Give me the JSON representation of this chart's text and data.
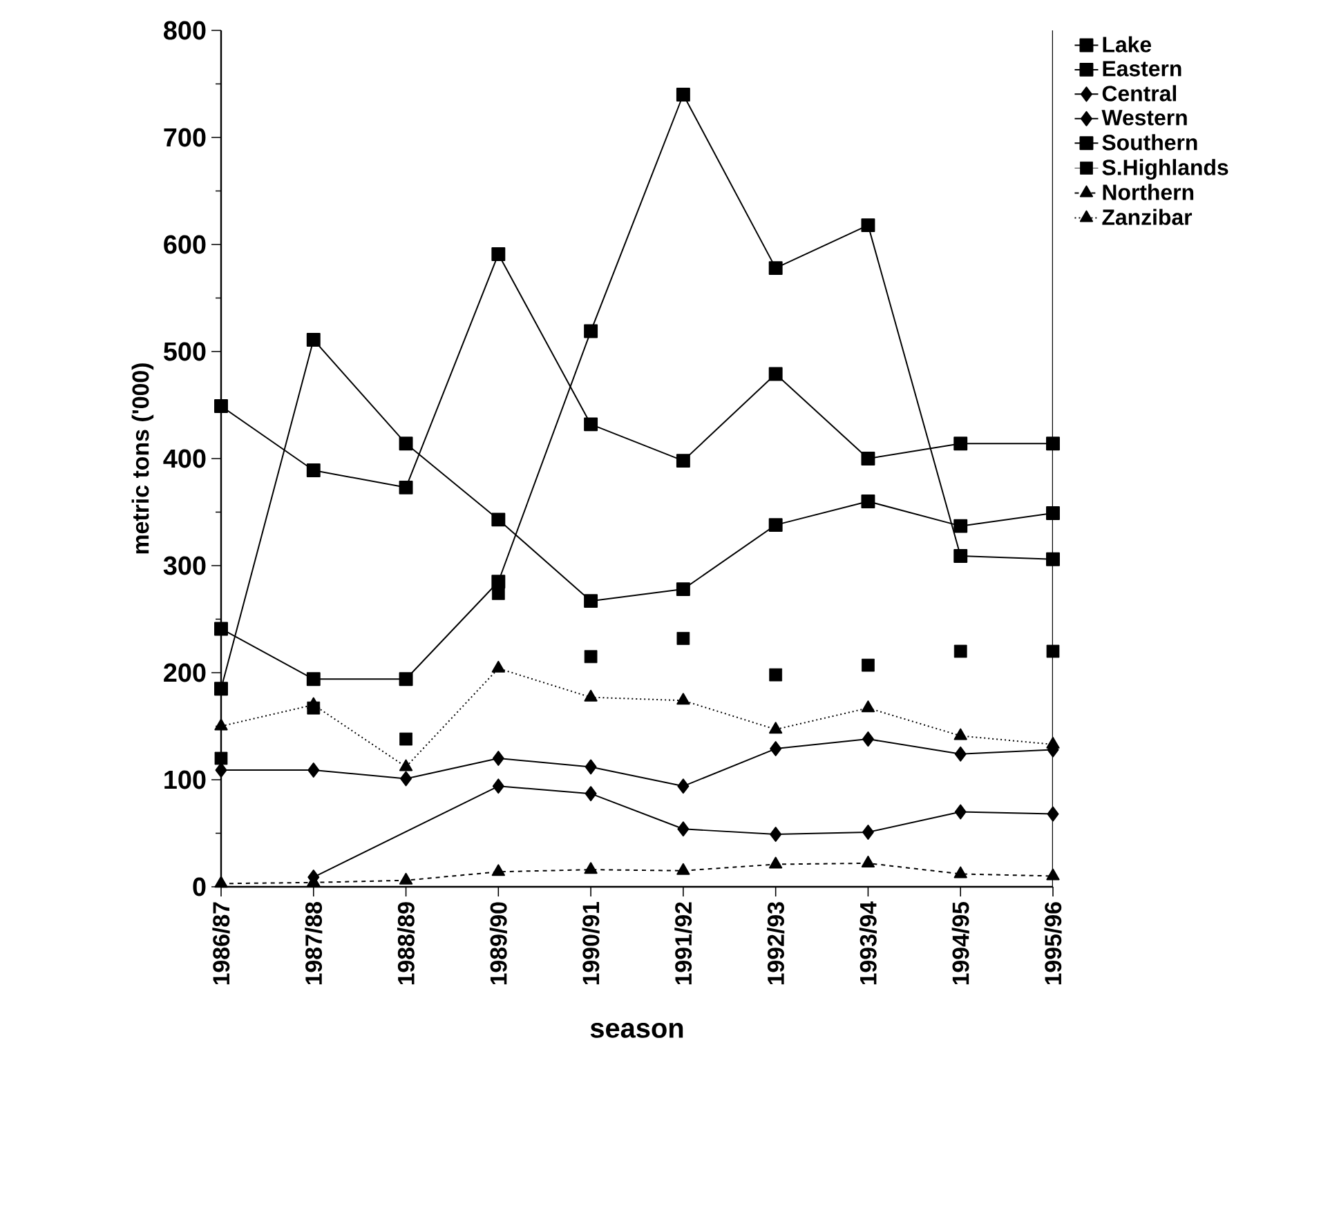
{
  "chart_data": {
    "type": "line",
    "xlabel": "season",
    "ylabel": "metric tons ('000)",
    "categories": [
      "1986/87",
      "1987/88",
      "1988/89",
      "1989/90",
      "1990/91",
      "1991/92",
      "1992/93",
      "1993/94",
      "1994/95",
      "1995/96"
    ],
    "ylim": [
      0,
      800
    ],
    "yticks": [
      0,
      100,
      200,
      300,
      400,
      500,
      600,
      700,
      800
    ],
    "grid": false,
    "legend": "top right",
    "series": [
      {
        "name": "Lake",
        "color": "#000000",
        "marker": "square",
        "line_style": "solid",
        "values": [
          449,
          389,
          373,
          591,
          432,
          398,
          479,
          400,
          414,
          414
        ]
      },
      {
        "name": "Eastern",
        "color": "#000000",
        "marker": "square",
        "line_style": "solid",
        "values": [
          185,
          511,
          414,
          343,
          267,
          278,
          338,
          360,
          337,
          349
        ]
      },
      {
        "name": "Central",
        "color": "#000000",
        "marker": "diamond",
        "line_style": "solid",
        "values": [
          null,
          9,
          null,
          94,
          87,
          54,
          49,
          51,
          70,
          68
        ]
      },
      {
        "name": "Western",
        "color": "#000000",
        "marker": "diamond",
        "line_style": "solid",
        "values": [
          109,
          109,
          101,
          120,
          112,
          94,
          129,
          138,
          124,
          128
        ]
      },
      {
        "name": "Southern",
        "color": "#000000",
        "marker": "square",
        "line_style": "solid",
        "values": [
          241,
          194,
          194,
          285,
          519,
          740,
          578,
          618,
          309,
          306
        ]
      },
      {
        "name": "S.Highlands",
        "type": "scatter",
        "color": "#000000",
        "marker": "square",
        "values": [
          120,
          167,
          138,
          274,
          215,
          232,
          198,
          207,
          220,
          220
        ]
      },
      {
        "name": "Northern",
        "color": "#000000",
        "marker": "triangle",
        "line_style": "dashed",
        "values": [
          3,
          4,
          6,
          14,
          16,
          15,
          21,
          22,
          12,
          10
        ]
      },
      {
        "name": "Zanzibar",
        "color": "#000000",
        "marker": "triangle",
        "line_style": "dotted",
        "values": [
          150,
          170,
          112,
          204,
          177,
          174,
          147,
          167,
          141,
          133
        ]
      }
    ]
  }
}
